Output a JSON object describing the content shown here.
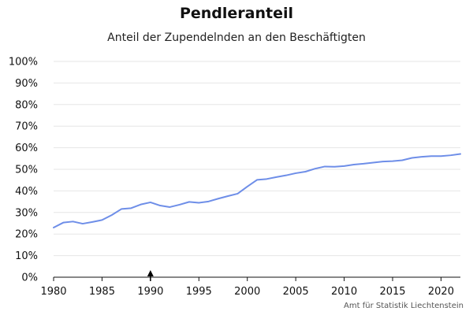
{
  "header": {
    "title": "Pendleranteil",
    "subtitle": "Anteil der Zupendelnden an den Beschäftigten"
  },
  "source": "Amt für Statistik Liechtenstein",
  "colors": {
    "line": "#6e8ee8",
    "grid": "#e6e6e6",
    "axis": "#111111"
  },
  "chart_data": {
    "type": "line",
    "title": "Pendleranteil",
    "subtitle": "Anteil der Zupendelnden an den Beschäftigten",
    "xlabel": "",
    "ylabel": "",
    "xlim": [
      1980,
      2022
    ],
    "ylim": [
      0,
      100
    ],
    "x_ticks": [
      1980,
      1985,
      1990,
      1995,
      2000,
      2005,
      2010,
      2015,
      2020
    ],
    "y_ticks": [
      "0%",
      "10%",
      "20%",
      "30%",
      "40%",
      "50%",
      "60%",
      "70%",
      "80%",
      "90%",
      "100%"
    ],
    "grid": "horizontal",
    "marker_year": 1990,
    "series": [
      {
        "x": [
          1980,
          1981,
          1982,
          1983,
          1984,
          1985,
          1986,
          1987,
          1988,
          1989,
          1990,
          1991,
          1992,
          1993,
          1994,
          1995,
          1996,
          1997,
          1998,
          1999,
          2000,
          2001,
          2002,
          2003,
          2004,
          2005,
          2006,
          2007,
          2008,
          2009,
          2010,
          2011,
          2012,
          2013,
          2014,
          2015,
          2016,
          2017,
          2018,
          2019,
          2020,
          2021,
          2022
        ],
        "values": [
          23.0,
          25.3,
          25.8,
          24.8,
          25.6,
          26.5,
          28.8,
          31.6,
          32.0,
          33.7,
          34.7,
          33.2,
          32.5,
          33.6,
          34.9,
          34.5,
          35.1,
          36.4,
          37.6,
          38.7,
          42.0,
          45.1,
          45.5,
          46.4,
          47.2,
          48.2,
          48.9,
          50.3,
          51.3,
          51.2,
          51.5,
          52.2,
          52.6,
          53.1,
          53.6,
          53.8,
          54.2,
          55.3,
          55.8,
          56.1,
          56.1,
          56.5,
          57.1
        ]
      }
    ]
  }
}
